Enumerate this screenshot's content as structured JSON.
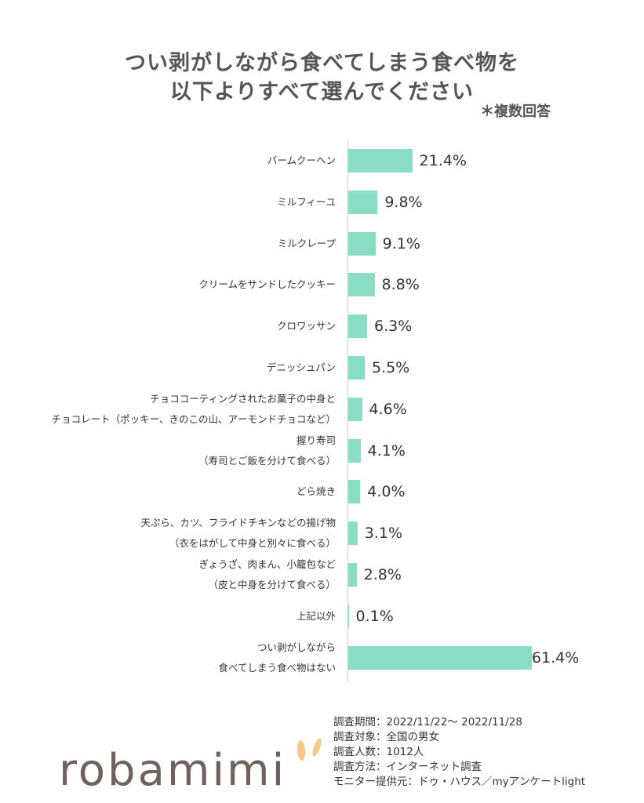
{
  "chart_data": {
    "type": "bar",
    "orientation": "horizontal",
    "title_lines": [
      "つい剥がしながら食べてしまう食べ物を",
      "以下よりすべて選んでください"
    ],
    "note": "＊複数回答",
    "categories": [
      "バームクーヘン",
      "ミルフィーユ",
      "ミルクレープ",
      "クリームをサンドしたクッキー",
      "クロワッサン",
      "デニッシュパン",
      "チョココーティングされたお菓子の中身と\nチョコレート（ポッキー、きのこの山、アーモンドチョコなど）",
      "握り寿司\n（寿司とご飯を分けて食べる）",
      "どら焼き",
      "天ぷら、カツ、フライドチキンなどの揚げ物\n（衣をはがして中身と別々に食べる）",
      "ぎょうざ、肉まん、小籠包など\n（皮と中身を分けて食べる）",
      "上記以外",
      "つい剥がしながら\n食べてしまう食べ物はない"
    ],
    "values": [
      21.4,
      9.8,
      9.1,
      8.8,
      6.3,
      5.5,
      4.6,
      4.1,
      4.0,
      3.1,
      2.8,
      0.1,
      61.4
    ],
    "value_labels": [
      "21.4%",
      "9.8%",
      "9.1%",
      "8.8%",
      "6.3%",
      "5.5%",
      "4.6%",
      "4.1%",
      "4.0%",
      "3.1%",
      "2.8%",
      "0.1%",
      "61.4%"
    ],
    "unit": "%",
    "bar_color": "#8addc4",
    "grid": false,
    "legend": "none"
  },
  "footer": {
    "logo": "robamimi",
    "logo_color": "#6e615e",
    "ear_color": "#f5c98a",
    "info": [
      "調査期間：2022/11/22～ 2022/11/28",
      "調査対象：全国の男女",
      "調査人数：1012人",
      "調査方法：インターネット調査",
      "モニター提供元：ドゥ・ハウス／myアンケートlight"
    ]
  }
}
